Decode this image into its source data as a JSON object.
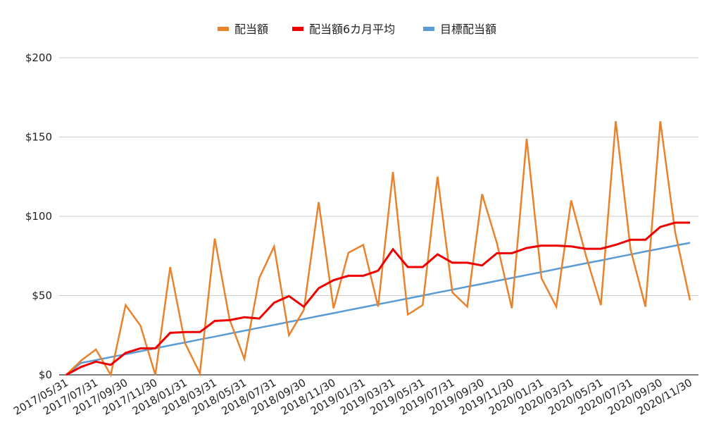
{
  "chart_data": {
    "type": "line",
    "x": [
      "2017/05/31",
      "2017/06/30",
      "2017/07/31",
      "2017/08/31",
      "2017/09/30",
      "2017/10/31",
      "2017/11/30",
      "2017/12/31",
      "2018/01/31",
      "2018/02/28",
      "2018/03/31",
      "2018/04/30",
      "2018/05/31",
      "2018/06/30",
      "2018/07/31",
      "2018/08/31",
      "2018/09/30",
      "2018/10/31",
      "2018/11/30",
      "2018/12/31",
      "2019/01/31",
      "2019/02/28",
      "2019/03/31",
      "2019/04/30",
      "2019/05/31",
      "2019/06/30",
      "2019/07/31",
      "2019/08/31",
      "2019/09/30",
      "2019/10/31",
      "2019/11/30",
      "2019/12/31",
      "2020/01/31",
      "2020/02/29",
      "2020/03/31",
      "2020/04/30",
      "2020/05/31",
      "2020/06/30",
      "2020/07/31",
      "2020/08/31",
      "2020/09/30",
      "2020/10/31",
      "2020/11/30"
    ],
    "x_tick_labels": [
      "2017/05/31",
      "2017/07/31",
      "2017/09/30",
      "2017/11/30",
      "2018/01/31",
      "2018/03/31",
      "2018/05/31",
      "2018/07/31",
      "2018/09/30",
      "2018/11/30",
      "2019/01/31",
      "2019/03/31",
      "2019/05/31",
      "2019/07/31",
      "2019/09/30",
      "2019/11/30",
      "2020/01/31",
      "2020/03/31",
      "2020/05/31",
      "2020/07/31",
      "2020/09/30",
      "2020/11/30"
    ],
    "series": [
      {
        "name": "配当額",
        "color": "#e8822c",
        "values": [
          0,
          9,
          16,
          0,
          44,
          31,
          0,
          68,
          20,
          1,
          86,
          35,
          10,
          61,
          81,
          25,
          41,
          109,
          42,
          77,
          82,
          43,
          128,
          38,
          44,
          125,
          52,
          43,
          114,
          83,
          42,
          149,
          61,
          43,
          110,
          75,
          44,
          160,
          79,
          43,
          160,
          90,
          47
        ]
      },
      {
        "name": "配当額6カ月平均",
        "color": "#ee0000",
        "values": [
          0,
          5,
          8.3,
          6.3,
          13.8,
          16.7,
          16.7,
          26.5,
          27,
          27,
          34,
          34.5,
          36.3,
          35.5,
          45.5,
          49.7,
          43,
          54.6,
          59.7,
          62.5,
          62.5,
          65.7,
          79.2,
          68,
          68,
          76,
          70.7,
          70.7,
          69,
          76.7,
          76.7,
          80,
          81.5,
          81.5,
          81,
          79.5,
          79.5,
          82,
          85.2,
          85.2,
          93.3,
          96,
          96
        ]
      },
      {
        "name": "目標配当額",
        "color": "#5b9bd5",
        "values": [
          0,
          7.5,
          9.3,
          11.2,
          13.0,
          14.9,
          16.7,
          18.6,
          20.4,
          22.3,
          24.1,
          26.0,
          27.8,
          29.7,
          31.5,
          33.4,
          35.2,
          37.1,
          38.9,
          40.8,
          42.6,
          44.5,
          46.3,
          48.2,
          50.0,
          51.9,
          53.7,
          55.6,
          57.4,
          59.3,
          61.1,
          63.0,
          64.8,
          66.7,
          68.5,
          70.4,
          72.2,
          74.1,
          75.9,
          77.8,
          79.6,
          81.5,
          83.3
        ]
      }
    ],
    "y_ticks": [
      0,
      50,
      100,
      150,
      200
    ],
    "y_tick_labels": [
      "$0",
      "$50",
      "$100",
      "$150",
      "$200"
    ],
    "ylim": [
      0,
      200
    ],
    "grid": true,
    "legend_position": "top-center"
  }
}
